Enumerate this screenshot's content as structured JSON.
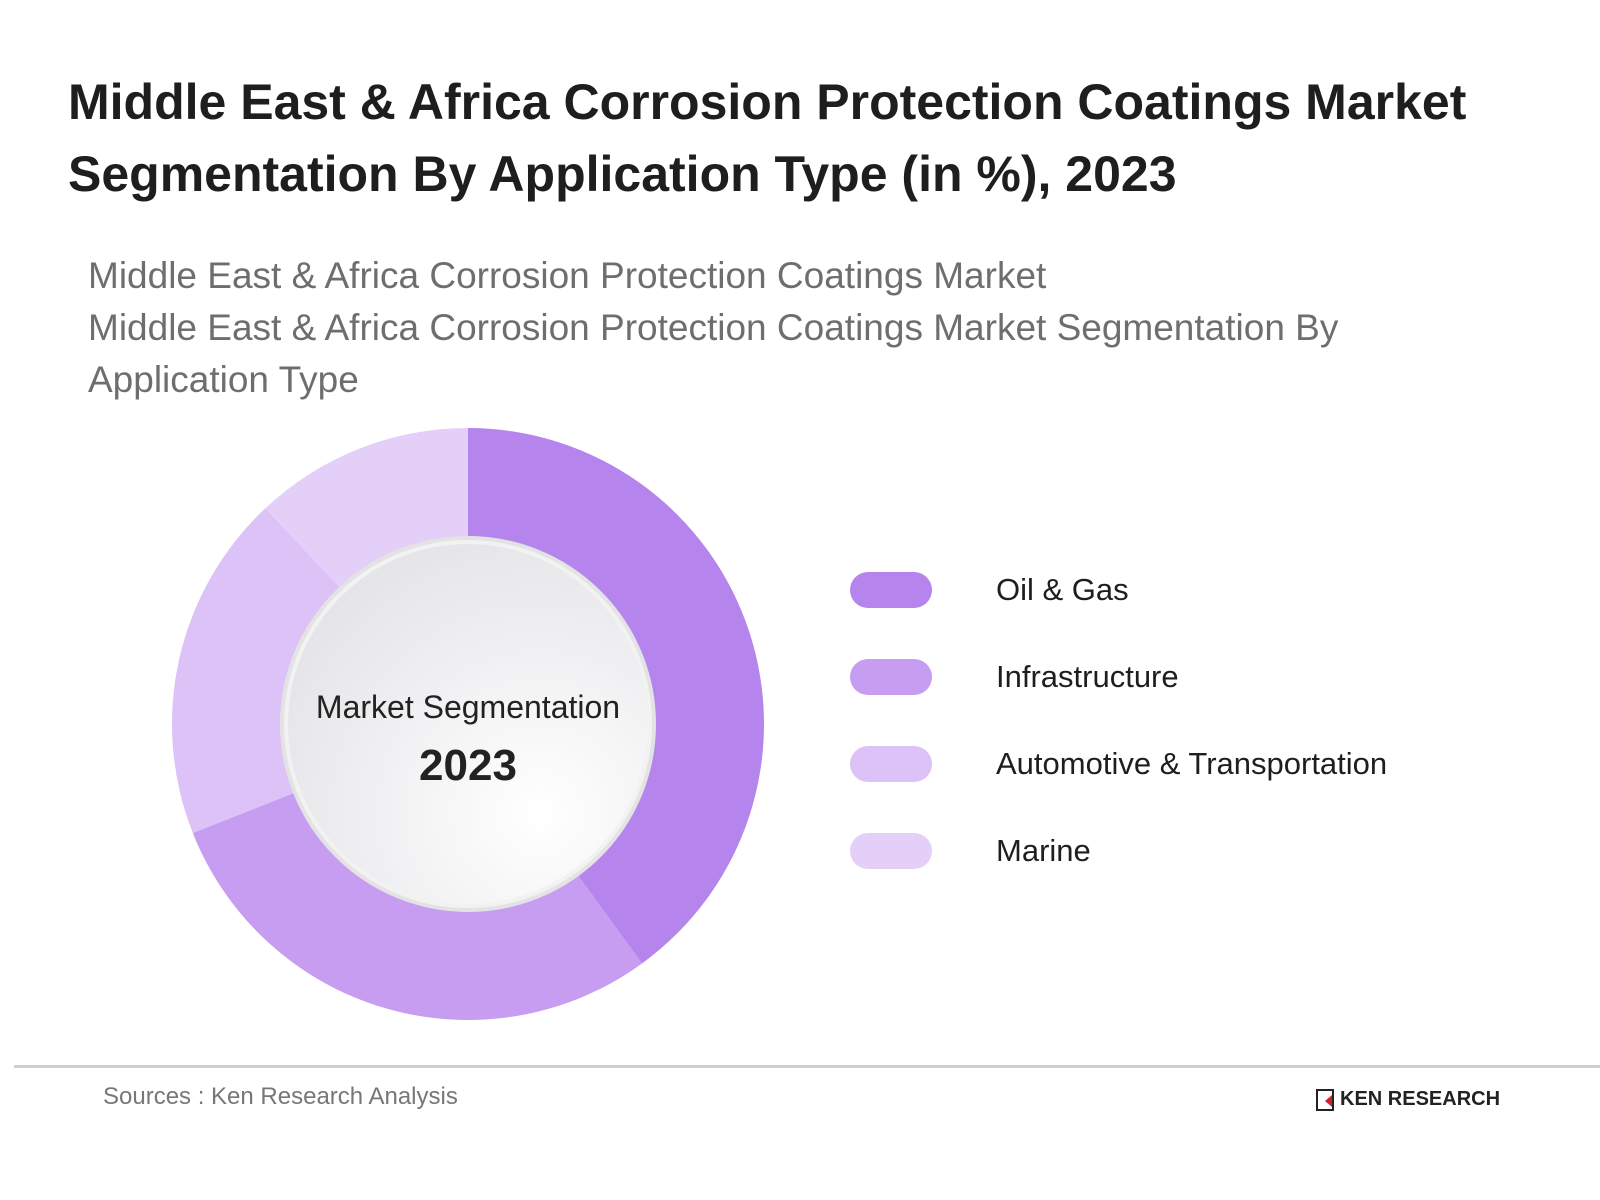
{
  "title": "Middle East & Africa Corrosion Protection Coatings Market Segmentation By Application Type (in %), 2023",
  "subtitle_line1": "Middle East & Africa Corrosion Protection Coatings Market",
  "subtitle_line2": "Middle East & Africa Corrosion Protection Coatings Market Segmentation By Application Type",
  "chart_data": {
    "type": "pie",
    "variant": "donut",
    "center_label": "Market Segmentation",
    "center_value": "2023",
    "categories": [
      "Oil & Gas",
      "Infrastructure",
      "Automotive & Transportation",
      "Marine"
    ],
    "values": [
      40,
      29,
      19,
      12
    ],
    "colors": [
      "#b584ec",
      "#c69df0",
      "#dcc2f7",
      "#e4cff8"
    ],
    "legend_placement": "right"
  },
  "footer": {
    "source": "Sources : Ken Research Analysis",
    "logo_text": "KEN RESEARCH"
  }
}
